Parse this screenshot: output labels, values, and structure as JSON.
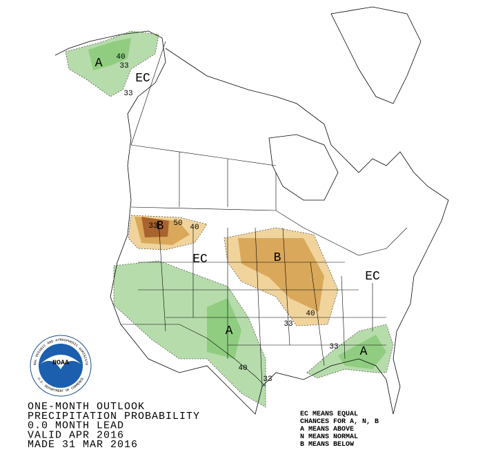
{
  "map_labels": [
    "A",
    "40",
    "33",
    "EC",
    "33",
    "B",
    "50",
    "40",
    "33",
    "EC",
    "B",
    "EC",
    "A",
    "40",
    "33",
    "33",
    "40",
    "33",
    "A"
  ],
  "title_lines": [
    "ONE-MONTH OUTLOOK",
    "PRECIPITATION PROBABILITY",
    "0.0 MONTH LEAD",
    "VALID APR 2016",
    "MADE 31 MAR 2016"
  ],
  "legend_lines": [
    "EC MEANS EQUAL",
    "CHANCES FOR A, N, B",
    "A MEANS ABOVE",
    "N MEANS NORMAL",
    "B MEANS BELOW"
  ],
  "logo": {
    "name": "NOAA",
    "ring_top": "NATIONAL OCEANIC AND ATMOSPHERIC ADMINISTRATION",
    "ring_bottom": "U.S. DEPARTMENT OF COMMERCE"
  }
}
